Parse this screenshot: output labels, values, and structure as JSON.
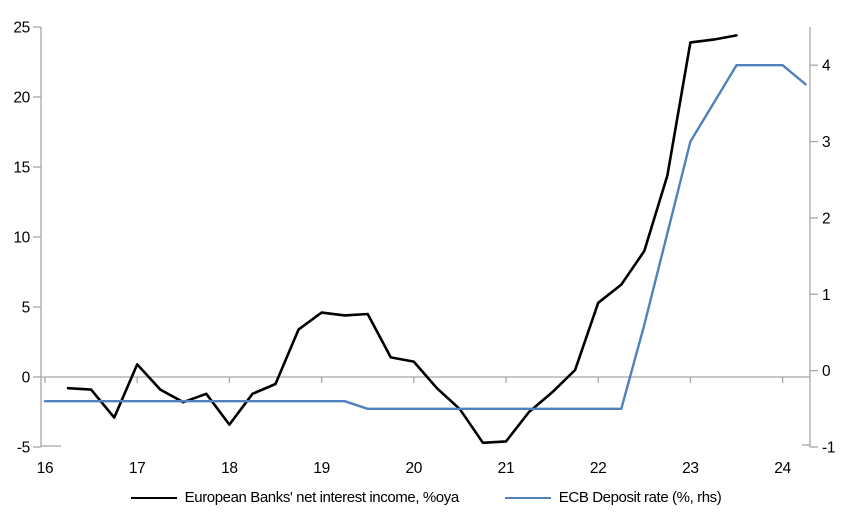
{
  "chart_data": {
    "type": "line",
    "title": "",
    "grid": "zero-line-only",
    "legend_position": "bottom",
    "x_axis": {
      "min": 16,
      "max": 24.3,
      "ticks": [
        16,
        17,
        18,
        19,
        20,
        21,
        22,
        23,
        24
      ],
      "tick_labels": [
        "16",
        "17",
        "18",
        "19",
        "20",
        "21",
        "22",
        "23",
        "24"
      ]
    },
    "left_axis": {
      "min": -5,
      "max": 25,
      "ticks": [
        -5,
        0,
        5,
        10,
        15,
        20,
        25
      ]
    },
    "right_axis": {
      "min": -1,
      "max": 4.5,
      "ticks": [
        -1,
        0,
        1,
        2,
        3,
        4
      ]
    },
    "axis_color": "#a6a6a6",
    "series": [
      {
        "name": "European Banks' net interest income, %oya",
        "axis": "left",
        "color": "#000000",
        "line_width": 2.6,
        "x": [
          16.25,
          16.5,
          16.75,
          17.0,
          17.25,
          17.5,
          17.75,
          18.0,
          18.25,
          18.5,
          18.75,
          19.0,
          19.25,
          19.5,
          19.75,
          20.0,
          20.25,
          20.5,
          20.75,
          21.0,
          21.25,
          21.5,
          21.75,
          22.0,
          22.25,
          22.5,
          22.75,
          23.0,
          23.25,
          23.5
        ],
        "y": [
          -0.8,
          -0.9,
          -2.9,
          0.9,
          -0.9,
          -1.8,
          -1.2,
          -3.4,
          -1.2,
          -0.5,
          3.4,
          4.6,
          4.4,
          4.5,
          1.4,
          1.1,
          -0.8,
          -2.3,
          -4.7,
          -4.6,
          -2.5,
          -1.1,
          0.5,
          5.3,
          6.6,
          9.0,
          14.4,
          23.9,
          24.1,
          24.4
        ]
      },
      {
        "name": "ECB Deposit rate (%, rhs)",
        "axis": "right",
        "color": "#4F81BD",
        "line_width": 2.4,
        "x": [
          16.0,
          16.25,
          16.5,
          16.75,
          17.0,
          17.25,
          17.5,
          17.75,
          18.0,
          18.25,
          18.5,
          18.75,
          19.0,
          19.25,
          19.5,
          19.75,
          20.0,
          20.25,
          20.5,
          20.75,
          21.0,
          21.25,
          21.5,
          21.75,
          22.0,
          22.25,
          22.5,
          22.75,
          23.0,
          23.25,
          23.5,
          23.75,
          24.0,
          24.25
        ],
        "y": [
          -0.4,
          -0.4,
          -0.4,
          -0.4,
          -0.4,
          -0.4,
          -0.4,
          -0.4,
          -0.4,
          -0.4,
          -0.4,
          -0.4,
          -0.4,
          -0.4,
          -0.5,
          -0.5,
          -0.5,
          -0.5,
          -0.5,
          -0.5,
          -0.5,
          -0.5,
          -0.5,
          -0.5,
          -0.5,
          -0.5,
          0.6,
          1.8,
          3.0,
          3.5,
          4.0,
          4.0,
          4.0,
          3.75
        ]
      }
    ]
  }
}
